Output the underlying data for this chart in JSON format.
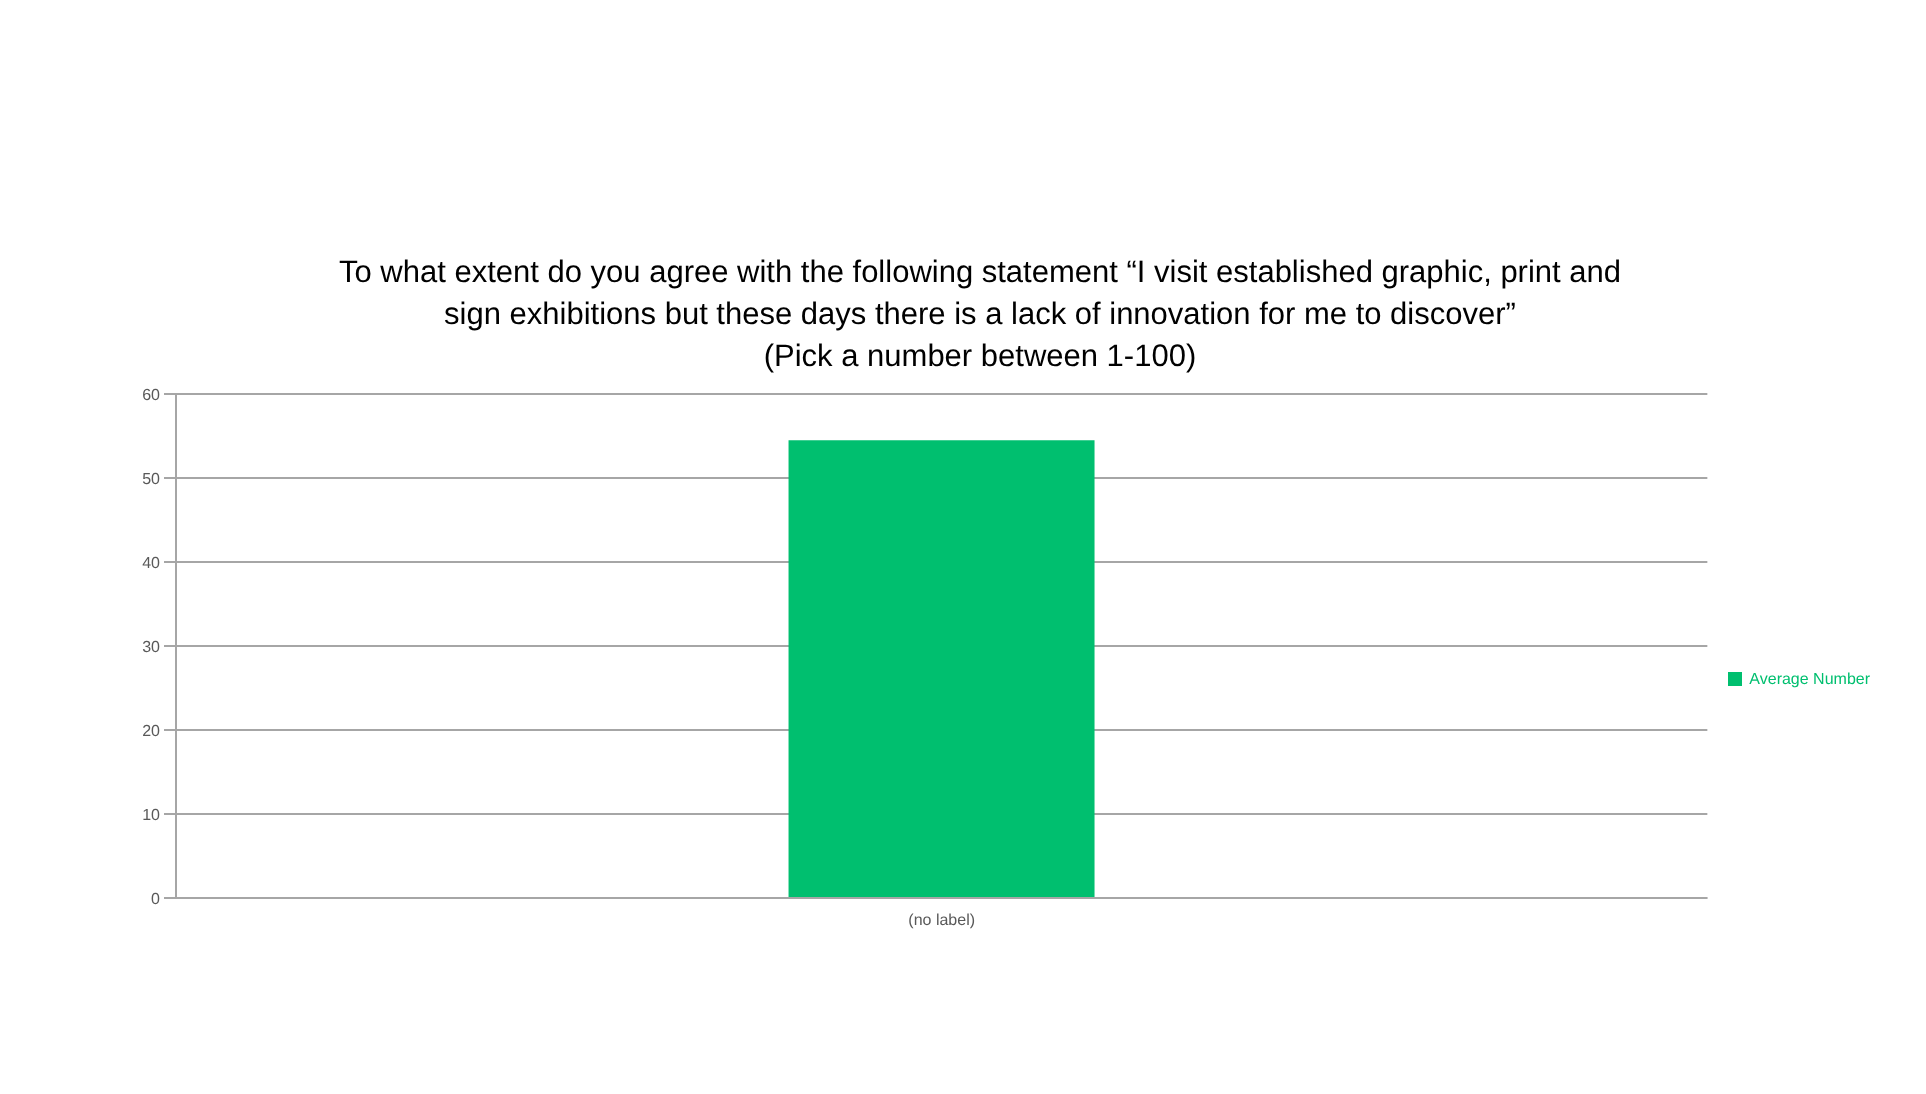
{
  "chart_data": {
    "type": "bar",
    "title": "To what extent do you agree with the following statement “I visit established graphic, print and sign exhibitions but these days there is a lack of innovation for me to discover”\n(Pick a number between 1-100)",
    "categories": [
      "(no label)"
    ],
    "series": [
      {
        "name": "Average Number",
        "color": "#00bf6f",
        "values": [
          54.5
        ]
      }
    ],
    "ylim": [
      0,
      60
    ],
    "yticks": [
      0,
      10,
      20,
      30,
      40,
      50,
      60
    ],
    "grid": "y",
    "legend": "right"
  }
}
